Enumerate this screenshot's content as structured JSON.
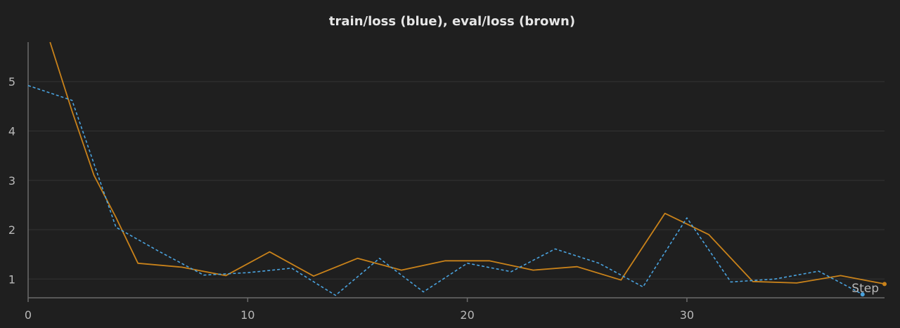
{
  "chart_data": {
    "type": "line",
    "title": "train/loss (blue), eval/loss (brown)",
    "xlabel": "Step",
    "ylabel": "",
    "xlim": [
      0,
      39
    ],
    "ylim": [
      0.62,
      5.8
    ],
    "x_ticks": [
      0,
      10,
      20,
      30
    ],
    "y_ticks": [
      1,
      2,
      3,
      4,
      5
    ],
    "grid": true,
    "series": [
      {
        "name": "eval/loss",
        "color": "#c9821a",
        "style": "solid",
        "points": [
          [
            1,
            5.8
          ],
          [
            2,
            4.4
          ],
          [
            3,
            3.1
          ],
          [
            4,
            2.25
          ],
          [
            5,
            1.32
          ],
          [
            7,
            1.24
          ],
          [
            9,
            1.07
          ],
          [
            11,
            1.55
          ],
          [
            13,
            1.06
          ],
          [
            15,
            1.42
          ],
          [
            17,
            1.18
          ],
          [
            19,
            1.37
          ],
          [
            21,
            1.37
          ],
          [
            23,
            1.18
          ],
          [
            25,
            1.25
          ],
          [
            27,
            0.98
          ],
          [
            29,
            2.33
          ],
          [
            31,
            1.9
          ],
          [
            33,
            0.95
          ],
          [
            35,
            0.92
          ],
          [
            37,
            1.07
          ],
          [
            39,
            0.9
          ]
        ]
      },
      {
        "name": "train/loss",
        "color": "#4aa3df",
        "style": "dashed",
        "points": [
          [
            0,
            4.92
          ],
          [
            2,
            4.62
          ],
          [
            4,
            2.05
          ],
          [
            6,
            1.55
          ],
          [
            8,
            1.08
          ],
          [
            10,
            1.13
          ],
          [
            12,
            1.22
          ],
          [
            14,
            0.67
          ],
          [
            16,
            1.42
          ],
          [
            18,
            0.74
          ],
          [
            20,
            1.32
          ],
          [
            22,
            1.15
          ],
          [
            24,
            1.61
          ],
          [
            26,
            1.32
          ],
          [
            28,
            0.84
          ],
          [
            30,
            2.24
          ],
          [
            32,
            0.94
          ],
          [
            34,
            1.0
          ],
          [
            36,
            1.16
          ],
          [
            38,
            0.69
          ]
        ]
      }
    ]
  }
}
